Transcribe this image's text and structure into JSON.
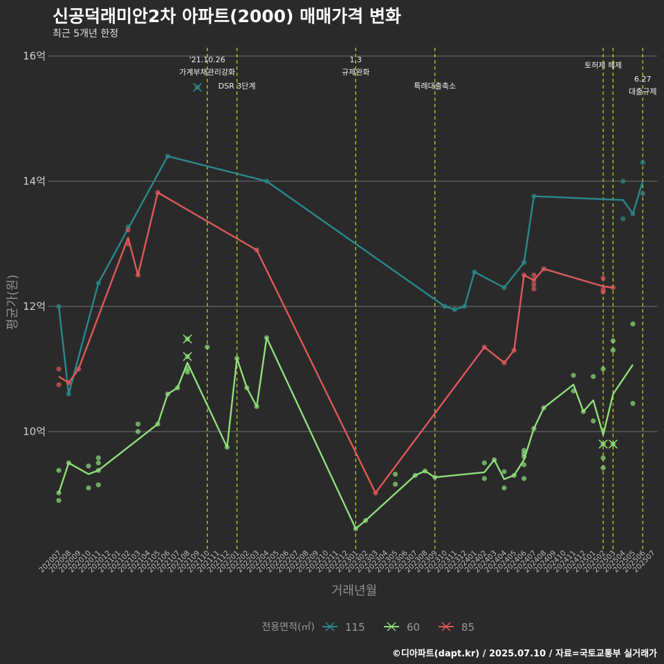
{
  "title": "신공덕래미안2차 아파트(2000) 매매가격 변화",
  "subtitle": "최근 5개년 한정",
  "caption": "©디아파트(dapt.kr) / 2025.07.10 / 자료=국토교통부 실거래가",
  "chart_data": {
    "type": "line",
    "xlabel": "거래년월",
    "ylabel": "평균가(원)",
    "ylim": [
      8.2,
      16.2
    ],
    "yticks": [
      {
        "value": 10,
        "label": "10억"
      },
      {
        "value": 12,
        "label": "12억"
      },
      {
        "value": 14,
        "label": "14억"
      },
      {
        "value": 16,
        "label": "16억"
      }
    ],
    "grid": true,
    "categories": [
      "202007",
      "202008",
      "202009",
      "202010",
      "202011",
      "202012",
      "202101",
      "202102",
      "202103",
      "202104",
      "202105",
      "202106",
      "202107",
      "202108",
      "202109",
      "202110",
      "202111",
      "202112",
      "202201",
      "202202",
      "202203",
      "202204",
      "202205",
      "202206",
      "202207",
      "202208",
      "202209",
      "202210",
      "202211",
      "202212",
      "202301",
      "202302",
      "202303",
      "202304",
      "202305",
      "202306",
      "202307",
      "202308",
      "202309",
      "202310",
      "202311",
      "202312",
      "202401",
      "202402",
      "202403",
      "202404",
      "202405",
      "202406",
      "202407",
      "202408",
      "202409",
      "202410",
      "202411",
      "202412",
      "202501",
      "202502",
      "202503",
      "202504",
      "202505",
      "202506",
      "202507"
    ],
    "legend": {
      "title": "전용면적(㎡)",
      "position": "bottom"
    },
    "events": [
      {
        "x": "202110",
        "lines": [
          "'21.10.26",
          "가계부채관리강화"
        ],
        "row": 0
      },
      {
        "x": "202201",
        "lines": [
          "DSR 3단계"
        ],
        "row": 2
      },
      {
        "x": "202301",
        "lines": [
          "1.3",
          "규제완화"
        ],
        "row": 0
      },
      {
        "x": "202309",
        "lines": [
          "특례대출축소"
        ],
        "row": 2
      },
      {
        "x": "202502",
        "lines": [
          "토허제 해제"
        ],
        "row": 1
      },
      {
        "x": "202503",
        "lines": [],
        "row": 1
      },
      {
        "x": "202506",
        "lines": [
          "6.27",
          "대출규제"
        ],
        "row": 3
      }
    ],
    "series": [
      {
        "name": "115",
        "color": "#2a8a8a",
        "line": [
          [
            "202007",
            12.0
          ],
          [
            "202008",
            10.6
          ],
          [
            "202011",
            12.37
          ],
          [
            "202106",
            14.4
          ],
          [
            "202204",
            14.0
          ],
          [
            "202310",
            12.0
          ],
          [
            "202311",
            11.95
          ],
          [
            "202312",
            12.0
          ],
          [
            "202401",
            12.55
          ],
          [
            "202404",
            12.3
          ],
          [
            "202406",
            12.7
          ],
          [
            "202407",
            13.76
          ],
          [
            "202504",
            13.7
          ],
          [
            "202505",
            13.48
          ],
          [
            "202506",
            14.0
          ]
        ],
        "points": [
          [
            "202007",
            12.0
          ],
          [
            "202008",
            10.6
          ],
          [
            "202011",
            12.37
          ],
          [
            "202102",
            13.27
          ],
          [
            "202106",
            14.4
          ],
          [
            "202204",
            14.0
          ],
          [
            "202310",
            12.0
          ],
          [
            "202311",
            11.95
          ],
          [
            "202312",
            12.0
          ],
          [
            "202401",
            12.55
          ],
          [
            "202404",
            12.3
          ],
          [
            "202406",
            12.7
          ],
          [
            "202407",
            13.76
          ],
          [
            "202504",
            14.0
          ],
          [
            "202504",
            13.4
          ],
          [
            "202505",
            13.48
          ],
          [
            "202506",
            14.3
          ],
          [
            "202506",
            13.8
          ]
        ],
        "cancelled": [
          [
            "202109",
            15.5
          ]
        ]
      },
      {
        "name": "60",
        "color": "#8fe07a",
        "line": [
          [
            "202007",
            9.02
          ],
          [
            "202008",
            9.5
          ],
          [
            "202010",
            9.32
          ],
          [
            "202011",
            9.38
          ],
          [
            "202105",
            10.12
          ],
          [
            "202106",
            10.6
          ],
          [
            "202107",
            10.7
          ],
          [
            "202108",
            11.1
          ],
          [
            "202112",
            9.75
          ],
          [
            "202201",
            11.17
          ],
          [
            "202202",
            10.7
          ],
          [
            "202203",
            10.4
          ],
          [
            "202204",
            11.5
          ],
          [
            "202301",
            8.45
          ],
          [
            "202302",
            8.58
          ],
          [
            "202307",
            9.3
          ],
          [
            "202308",
            9.37
          ],
          [
            "202309",
            9.27
          ],
          [
            "202402",
            9.35
          ],
          [
            "202403",
            9.55
          ],
          [
            "202404",
            9.24
          ],
          [
            "202405",
            9.3
          ],
          [
            "202406",
            9.55
          ],
          [
            "202407",
            10.05
          ],
          [
            "202408",
            10.38
          ],
          [
            "202411",
            10.75
          ],
          [
            "202412",
            10.32
          ],
          [
            "202501",
            10.5
          ],
          [
            "202502",
            9.95
          ],
          [
            "202503",
            10.6
          ],
          [
            "202505",
            11.07
          ]
        ],
        "points": [
          [
            "202007",
            9.38
          ],
          [
            "202007",
            9.02
          ],
          [
            "202007",
            8.9
          ],
          [
            "202008",
            9.5
          ],
          [
            "202010",
            9.45
          ],
          [
            "202010",
            9.1
          ],
          [
            "202011",
            9.58
          ],
          [
            "202011",
            9.5
          ],
          [
            "202011",
            9.38
          ],
          [
            "202011",
            9.15
          ],
          [
            "202103",
            10.12
          ],
          [
            "202103",
            10.0
          ],
          [
            "202105",
            10.12
          ],
          [
            "202106",
            10.6
          ],
          [
            "202107",
            10.7
          ],
          [
            "202108",
            11.0
          ],
          [
            "202108",
            10.95
          ],
          [
            "202110",
            11.35
          ],
          [
            "202112",
            9.75
          ],
          [
            "202201",
            11.17
          ],
          [
            "202202",
            10.7
          ],
          [
            "202203",
            10.4
          ],
          [
            "202204",
            11.5
          ],
          [
            "202301",
            8.45
          ],
          [
            "202302",
            8.58
          ],
          [
            "202305",
            9.32
          ],
          [
            "202305",
            9.16
          ],
          [
            "202307",
            9.3
          ],
          [
            "202308",
            9.37
          ],
          [
            "202309",
            9.27
          ],
          [
            "202402",
            9.5
          ],
          [
            "202402",
            9.25
          ],
          [
            "202403",
            9.55
          ],
          [
            "202404",
            9.36
          ],
          [
            "202404",
            9.1
          ],
          [
            "202405",
            9.3
          ],
          [
            "202406",
            9.7
          ],
          [
            "202406",
            9.65
          ],
          [
            "202406",
            9.6
          ],
          [
            "202406",
            9.47
          ],
          [
            "202406",
            9.25
          ],
          [
            "202407",
            10.05
          ],
          [
            "202408",
            10.38
          ],
          [
            "202411",
            10.9
          ],
          [
            "202411",
            10.65
          ],
          [
            "202412",
            10.32
          ],
          [
            "202501",
            10.88
          ],
          [
            "202501",
            10.17
          ],
          [
            "202502",
            11.0
          ],
          [
            "202502",
            9.58
          ],
          [
            "202502",
            9.42
          ],
          [
            "202503",
            11.45
          ],
          [
            "202503",
            11.3
          ],
          [
            "202505",
            11.72
          ],
          [
            "202505",
            10.45
          ]
        ],
        "cancelled": [
          [
            "202108",
            11.48
          ],
          [
            "202108",
            11.2
          ],
          [
            "202502",
            9.8
          ],
          [
            "202503",
            9.8
          ]
        ]
      },
      {
        "name": "85",
        "color": "#e05a5a",
        "line": [
          [
            "202007",
            10.88
          ],
          [
            "202008",
            10.78
          ],
          [
            "202009",
            11.0
          ],
          [
            "202102",
            13.1
          ],
          [
            "202103",
            12.5
          ],
          [
            "202105",
            13.82
          ],
          [
            "202203",
            12.9
          ],
          [
            "202303",
            9.02
          ],
          [
            "202402",
            11.35
          ],
          [
            "202404",
            11.1
          ],
          [
            "202405",
            11.3
          ],
          [
            "202406",
            12.5
          ],
          [
            "202407",
            12.42
          ],
          [
            "202408",
            12.6
          ],
          [
            "202502",
            12.32
          ],
          [
            "202503",
            12.3
          ]
        ],
        "points": [
          [
            "202007",
            11.0
          ],
          [
            "202007",
            10.75
          ],
          [
            "202008",
            10.78
          ],
          [
            "202009",
            11.0
          ],
          [
            "202102",
            13.22
          ],
          [
            "202102",
            13.0
          ],
          [
            "202103",
            12.5
          ],
          [
            "202105",
            13.82
          ],
          [
            "202203",
            12.9
          ],
          [
            "202303",
            9.02
          ],
          [
            "202402",
            11.35
          ],
          [
            "202404",
            11.1
          ],
          [
            "202405",
            11.3
          ],
          [
            "202406",
            12.5
          ],
          [
            "202407",
            12.5
          ],
          [
            "202407",
            12.42
          ],
          [
            "202407",
            12.35
          ],
          [
            "202407",
            12.28
          ],
          [
            "202408",
            12.6
          ],
          [
            "202502",
            12.45
          ],
          [
            "202502",
            12.27
          ],
          [
            "202502",
            12.23
          ],
          [
            "202503",
            12.3
          ]
        ],
        "cancelled": []
      }
    ]
  }
}
